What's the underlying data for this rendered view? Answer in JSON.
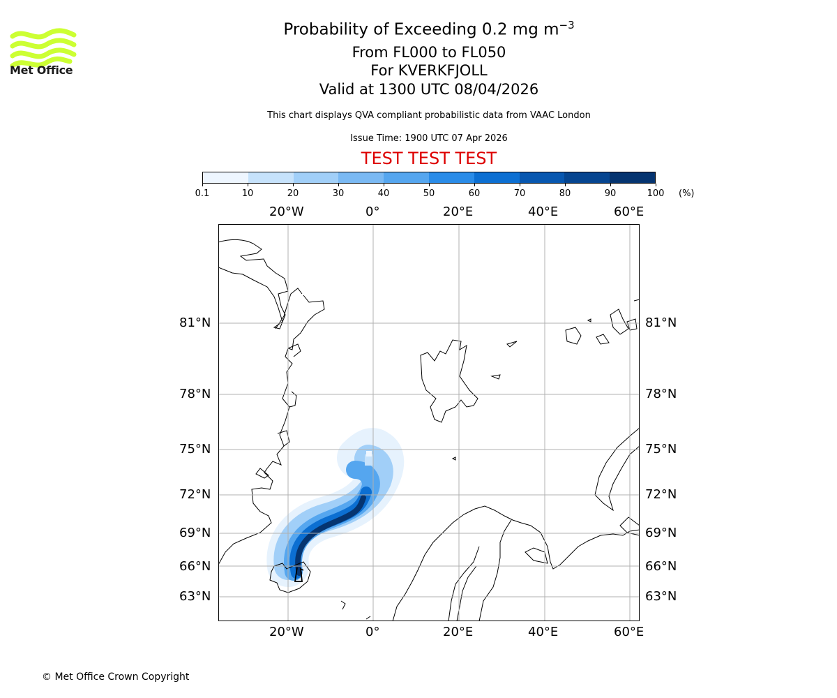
{
  "logo": {
    "text": "Met Office",
    "color": "#ccff33",
    "icon": "wave-logo-icon"
  },
  "title": {
    "line1": "Probability of Exceeding 0.2 mg m",
    "superscript": "−3",
    "line2": "From FL000 to FL050",
    "line3": "For KVERKFJOLL",
    "line4": "Valid at 1300 UTC 08/04/2026"
  },
  "subtitle": "This chart displays QVA compliant probabilistic data from VAAC London",
  "issue_time": "Issue Time: 1900 UTC 07 Apr 2026",
  "test_banner": "TEST TEST TEST",
  "colorbar": {
    "ticks": [
      "0.1",
      "10",
      "20",
      "30",
      "40",
      "50",
      "60",
      "70",
      "80",
      "90",
      "100"
    ],
    "unit": "(%)",
    "colors": [
      "#eef6ff",
      "#c6e2fb",
      "#a1cff8",
      "#7ab9f3",
      "#55a6ef",
      "#2a8ce8",
      "#0c6fd2",
      "#0857b0",
      "#064590",
      "#053470"
    ]
  },
  "map": {
    "lon_labels": [
      "20°W",
      "0°",
      "20°E",
      "40°E",
      "60°E"
    ],
    "lat_labels": [
      "81°N",
      "78°N",
      "75°N",
      "72°N",
      "69°N",
      "66°N",
      "63°N"
    ],
    "volcano": "KVERKFJOLL"
  },
  "copyright": "© Met Office Crown Copyright"
}
